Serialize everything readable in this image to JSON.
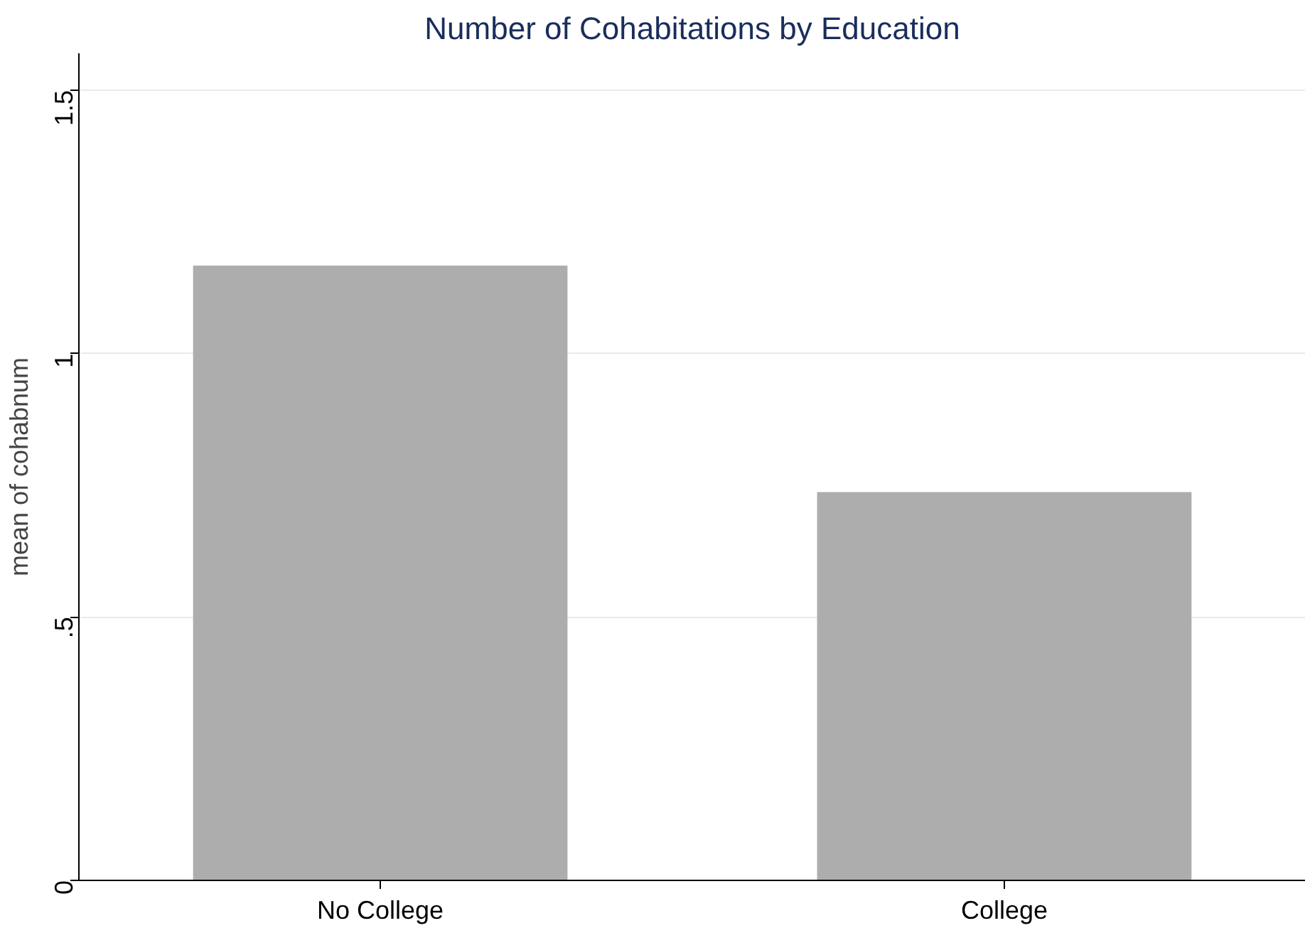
{
  "chart_data": {
    "type": "bar",
    "title": "Number of Cohabitations by Education",
    "ylabel": "mean of cohabnum",
    "categories": [
      "No College",
      "College"
    ],
    "values": [
      1.167,
      0.737
    ],
    "color": "#adadad",
    "ylim": [
      0,
      1.57
    ],
    "yticks": [
      {
        "value": 0,
        "label": "0"
      },
      {
        "value": 0.5,
        "label": ".5"
      },
      {
        "value": 1,
        "label": "1"
      },
      {
        "value": 1.5,
        "label": "1.5"
      }
    ],
    "grid": "y"
  }
}
